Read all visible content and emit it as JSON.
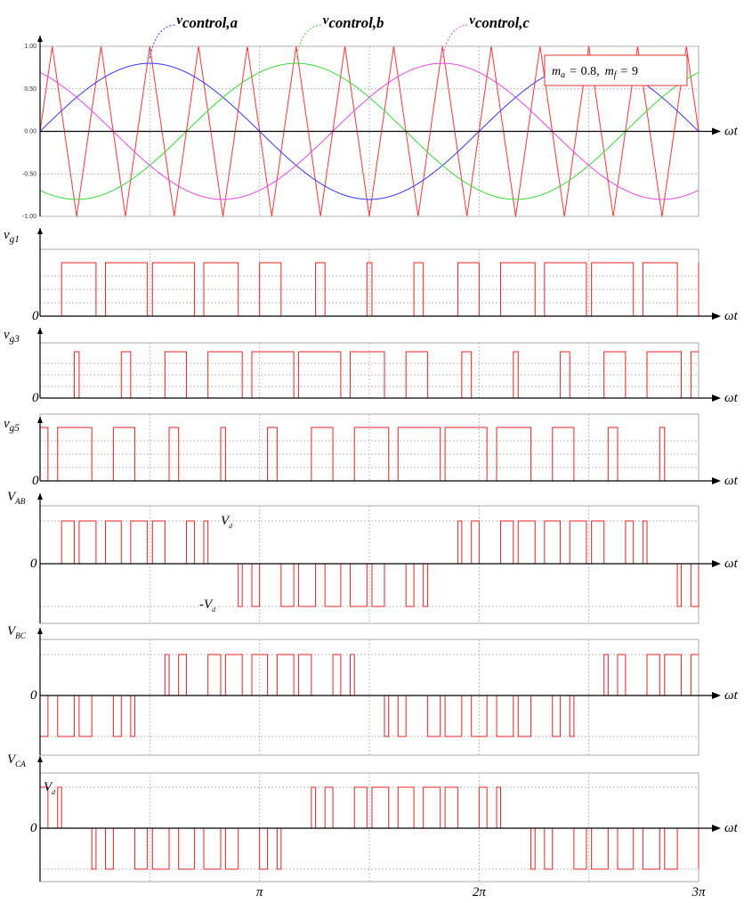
{
  "chart_data": {
    "type": "spwm",
    "ma": 0.8,
    "mf": 9,
    "annotation": {
      "ma_name": "m",
      "ma_sub": "a",
      "mf_name": "m",
      "mf_sub": "f",
      "equals": "=",
      "separator": ","
    },
    "series": [
      {
        "name": "v",
        "sub": "control,a",
        "color": "#3333ff",
        "phase_deg": 0
      },
      {
        "name": "v",
        "sub": "control,b",
        "color": "#33dd33",
        "phase_deg": -120
      },
      {
        "name": "v",
        "sub": "control,c",
        "color": "#ee44ee",
        "phase_deg": 120
      }
    ],
    "carrier_color": "#ff3333",
    "pulse_color": "#ee2222",
    "x_label": "ωt",
    "xlim": [
      0,
      9.42478
    ],
    "xticks": [
      {
        "value": 3.14159,
        "label": "π"
      },
      {
        "value": 6.28319,
        "label": "2π"
      },
      {
        "value": 9.42478,
        "label": "3π"
      }
    ],
    "ylim": [
      -1,
      1
    ],
    "yticks": [
      {
        "value": 1,
        "label": "1.00"
      },
      {
        "value": 0.5,
        "label": "0.50"
      },
      {
        "value": 0,
        "label": "0.00"
      },
      {
        "value": -0.5,
        "label": "-0.50"
      },
      {
        "value": -1,
        "label": "-1.00"
      }
    ],
    "gate_panels": [
      {
        "label": "v",
        "sub": "g1",
        "zero": "0"
      },
      {
        "label": "v",
        "sub": "g3",
        "zero": "0"
      },
      {
        "label": "v",
        "sub": "g5",
        "zero": "0"
      }
    ],
    "line_panels": [
      {
        "label": "V",
        "sub": "AB",
        "zero": "0",
        "pos": "V",
        "pos_sub": "d",
        "neg": "-V",
        "neg_sub": "d"
      },
      {
        "label": "V",
        "sub": "BC",
        "zero": "0"
      },
      {
        "label": "V",
        "sub": "CA",
        "zero": "0",
        "pos": "V",
        "pos_sub": "d"
      }
    ]
  }
}
